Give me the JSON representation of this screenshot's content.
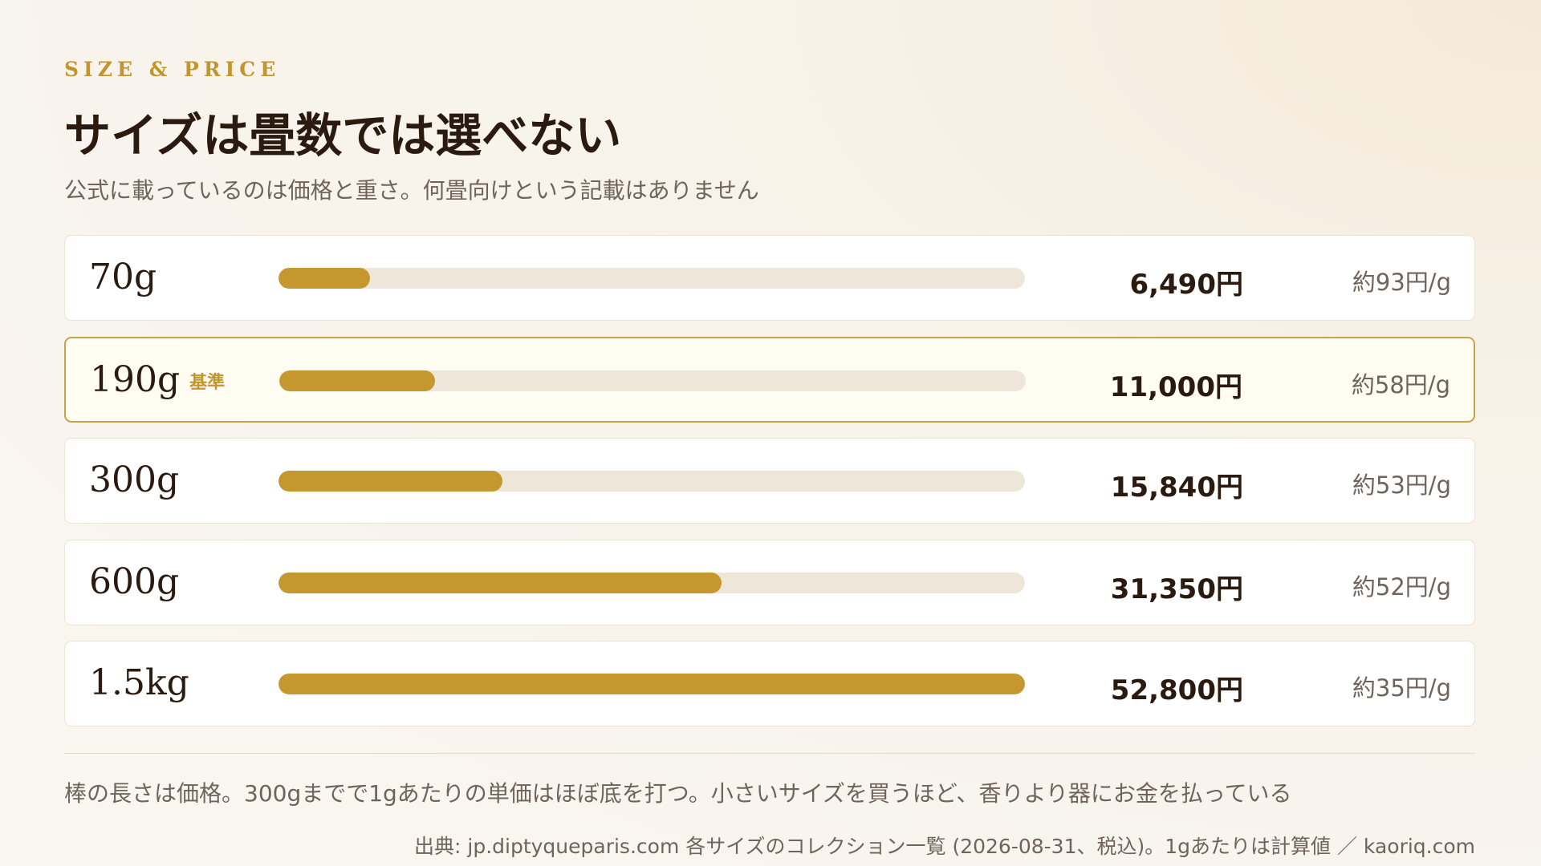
{
  "header": {
    "kicker": "SIZE & PRICE",
    "title": "サイズは畳数では選べない",
    "subtitle": "公式に載っているのは価格と重さ。何畳向けという記載はありません"
  },
  "chart_data": {
    "type": "bar",
    "orientation": "horizontal",
    "categories": [
      "70g",
      "190g",
      "300g",
      "600g",
      "1.5kg"
    ],
    "values": [
      6490,
      11000,
      15840,
      31350,
      52800
    ],
    "value_labels": [
      "6,490円",
      "11,000円",
      "15,840円",
      "31,350円",
      "52,800円"
    ],
    "unit_prices": [
      "約93円/g",
      "約58円/g",
      "約53円/g",
      "約52円/g",
      "約35円/g"
    ],
    "highlight_index": 1,
    "highlight_badge": "基準",
    "xlim": [
      0,
      52800
    ],
    "grid": false,
    "colors": {
      "bar": "#c4982e",
      "track": "#efe6da",
      "highlight_border": "#c9a34a"
    }
  },
  "footer": {
    "note": "棒の長さは価格。300gまでで1gあたりの単価はほぼ底を打つ。小さいサイズを買うほど、香りより器にお金を払っている",
    "source": "出典: jp.diptyqueparis.com 各サイズのコレクション一覧 (2026-08-31、税込)。1gあたりは計算値 ／ kaoriq.com"
  }
}
